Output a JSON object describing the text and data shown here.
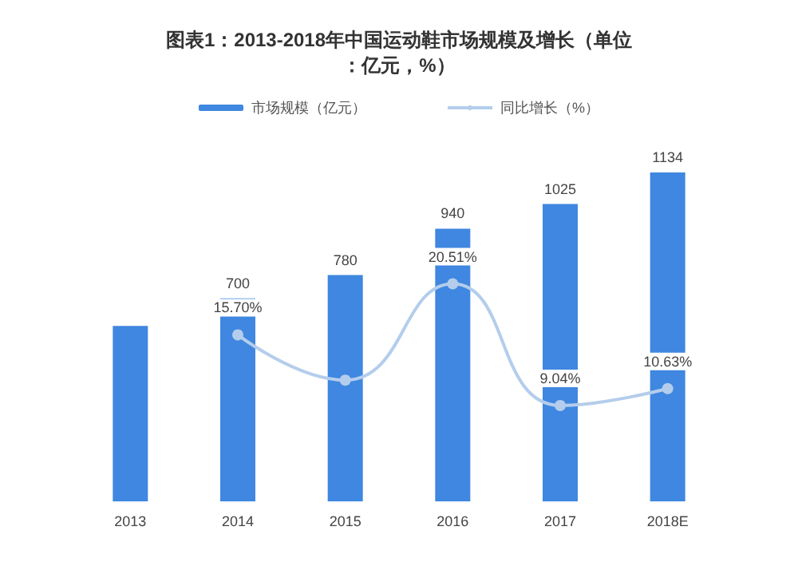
{
  "chart_data": {
    "type": "bar",
    "title": "图表1：2013-2018年中国运动鞋市场规模及增长（单位：亿元，%）",
    "categories": [
      "2013",
      "2014",
      "2015",
      "2016",
      "2017",
      "2018E"
    ],
    "series": [
      {
        "name": "市场规模（亿元）",
        "color": "#3f87e0",
        "values": [
          605,
          700,
          780,
          940,
          1025,
          1134
        ],
        "value_labels": [
          null,
          "700",
          "780",
          "940",
          "1025",
          "1134"
        ]
      },
      {
        "name": "同比增长（%）",
        "type": "line",
        "axis": "y2",
        "color": "#b4cdec",
        "values": [
          null,
          15.7,
          11.43,
          20.51,
          9.04,
          10.63
        ],
        "value_labels": [
          null,
          "15.70%",
          null,
          "20.51%",
          "9.04%",
          "10.63%"
        ]
      }
    ],
    "legend": "top",
    "marker": "circle",
    "tick_labels": "x"
  }
}
